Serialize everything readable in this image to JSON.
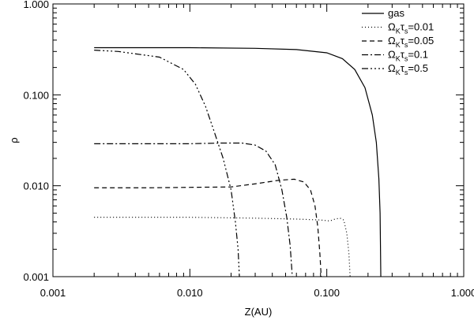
{
  "chart_data": {
    "type": "line",
    "title": "",
    "xlabel": "Z(AU)",
    "ylabel": "ρ",
    "xscale": "log",
    "yscale": "log",
    "xlim": [
      0.001,
      1.0
    ],
    "ylim": [
      0.001,
      1.0
    ],
    "x_ticks": [
      {
        "value": 0.001,
        "label": "0.001"
      },
      {
        "value": 0.01,
        "label": "0.010"
      },
      {
        "value": 0.1,
        "label": "0.100"
      },
      {
        "value": 1.0,
        "label": "1.000"
      }
    ],
    "y_ticks": [
      {
        "value": 0.001,
        "label": "0.001"
      },
      {
        "value": 0.01,
        "label": "0.010"
      },
      {
        "value": 0.1,
        "label": "0.100"
      },
      {
        "value": 1.0,
        "label": "1.000"
      }
    ],
    "grid": false,
    "legend_position": "top-right",
    "series": [
      {
        "name": "gas",
        "label_parts": [
          {
            "t": "gas"
          }
        ],
        "dash": "none",
        "points": [
          [
            0.002,
            0.33
          ],
          [
            0.01,
            0.33
          ],
          [
            0.03,
            0.325
          ],
          [
            0.06,
            0.315
          ],
          [
            0.1,
            0.29
          ],
          [
            0.13,
            0.25
          ],
          [
            0.16,
            0.19
          ],
          [
            0.19,
            0.12
          ],
          [
            0.215,
            0.06
          ],
          [
            0.23,
            0.03
          ],
          [
            0.24,
            0.012
          ],
          [
            0.245,
            0.005
          ],
          [
            0.248,
            0.001
          ]
        ]
      },
      {
        "name": "Ω_K τ_s=0.01",
        "label_parts": [
          {
            "t": "Ω"
          },
          {
            "t": "K",
            "sub": true
          },
          {
            "t": "τ"
          },
          {
            "t": "s",
            "sub": true
          },
          {
            "t": "=0.01"
          }
        ],
        "dash": "1,3",
        "points": [
          [
            0.002,
            0.0045
          ],
          [
            0.005,
            0.0045
          ],
          [
            0.01,
            0.0045
          ],
          [
            0.03,
            0.0044
          ],
          [
            0.06,
            0.0043
          ],
          [
            0.09,
            0.0042
          ],
          [
            0.105,
            0.0041
          ],
          [
            0.115,
            0.0043
          ],
          [
            0.125,
            0.0044
          ],
          [
            0.133,
            0.0042
          ],
          [
            0.14,
            0.003
          ],
          [
            0.145,
            0.0018
          ],
          [
            0.148,
            0.001
          ]
        ]
      },
      {
        "name": "Ω_K τ_s=0.05",
        "label_parts": [
          {
            "t": "Ω"
          },
          {
            "t": "K",
            "sub": true
          },
          {
            "t": "τ"
          },
          {
            "t": "s",
            "sub": true
          },
          {
            "t": "=0.05"
          }
        ],
        "dash": "6,4",
        "points": [
          [
            0.002,
            0.0095
          ],
          [
            0.005,
            0.0095
          ],
          [
            0.01,
            0.0096
          ],
          [
            0.02,
            0.0097
          ],
          [
            0.03,
            0.0105
          ],
          [
            0.045,
            0.0115
          ],
          [
            0.058,
            0.0118
          ],
          [
            0.068,
            0.011
          ],
          [
            0.076,
            0.009
          ],
          [
            0.082,
            0.006
          ],
          [
            0.086,
            0.0035
          ],
          [
            0.089,
            0.0018
          ],
          [
            0.091,
            0.001
          ]
        ]
      },
      {
        "name": "Ω_K τ_s=0.1",
        "label_parts": [
          {
            "t": "Ω"
          },
          {
            "t": "K",
            "sub": true
          },
          {
            "t": "τ"
          },
          {
            "t": "s",
            "sub": true
          },
          {
            "t": "=0.1"
          }
        ],
        "dash": "8,3,2,3",
        "points": [
          [
            0.002,
            0.029
          ],
          [
            0.005,
            0.029
          ],
          [
            0.01,
            0.029
          ],
          [
            0.017,
            0.0295
          ],
          [
            0.024,
            0.0295
          ],
          [
            0.03,
            0.028
          ],
          [
            0.036,
            0.024
          ],
          [
            0.042,
            0.017
          ],
          [
            0.047,
            0.009
          ],
          [
            0.051,
            0.0045
          ],
          [
            0.054,
            0.0022
          ],
          [
            0.056,
            0.001
          ]
        ]
      },
      {
        "name": "Ω_K τ_s=0.5",
        "label_parts": [
          {
            "t": "Ω"
          },
          {
            "t": "K",
            "sub": true
          },
          {
            "t": "τ"
          },
          {
            "t": "s",
            "sub": true
          },
          {
            "t": "=0.5"
          }
        ],
        "dash": "8,3,2,3,2,3,2,3",
        "points": [
          [
            0.002,
            0.31
          ],
          [
            0.003,
            0.3
          ],
          [
            0.006,
            0.26
          ],
          [
            0.009,
            0.19
          ],
          [
            0.011,
            0.13
          ],
          [
            0.013,
            0.075
          ],
          [
            0.015,
            0.04
          ],
          [
            0.0175,
            0.02
          ],
          [
            0.02,
            0.009
          ],
          [
            0.0215,
            0.004
          ],
          [
            0.0225,
            0.002
          ],
          [
            0.023,
            0.001
          ]
        ]
      }
    ]
  }
}
